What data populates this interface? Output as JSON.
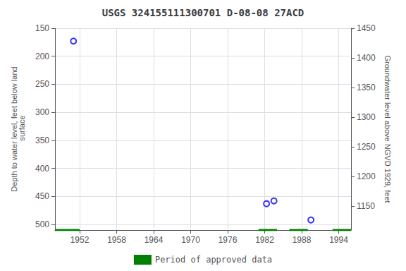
{
  "chart_data": {
    "type": "scatter",
    "title": "USGS 324155111300701 D-08-08 27ACD",
    "ylabel": "Depth to water level, feet below land\n surface",
    "y2label": "Groundwater level above NGVD 1929, feet",
    "xlim": [
      1948,
      1996
    ],
    "xticks": [
      1952,
      1958,
      1964,
      1970,
      1976,
      1982,
      1988,
      1994
    ],
    "ylim": [
      510,
      150
    ],
    "yticks": [
      150,
      200,
      250,
      300,
      350,
      400,
      450,
      500
    ],
    "y2lim": [
      1110,
      1450
    ],
    "y2ticks": [
      1450,
      1400,
      1350,
      1300,
      1250,
      1200,
      1150
    ],
    "grid": true,
    "legend": "bottom",
    "series": [
      {
        "type": "scatter",
        "color": "#0000ff",
        "marker": "open_circle",
        "x": [
          1951.0,
          1982.3,
          1983.5,
          1989.5
        ],
        "values": [
          173,
          463,
          458,
          492
        ]
      },
      {
        "name": "Period of approved data",
        "type": "line",
        "color": "#008000",
        "line_style": "solid",
        "x": [
          1948,
          1952,
          null,
          1981,
          1984,
          null,
          1986,
          1989,
          null,
          1993,
          1996
        ],
        "values": [
          510,
          510,
          null,
          510,
          510,
          null,
          510,
          510,
          null,
          510,
          510
        ]
      }
    ]
  }
}
